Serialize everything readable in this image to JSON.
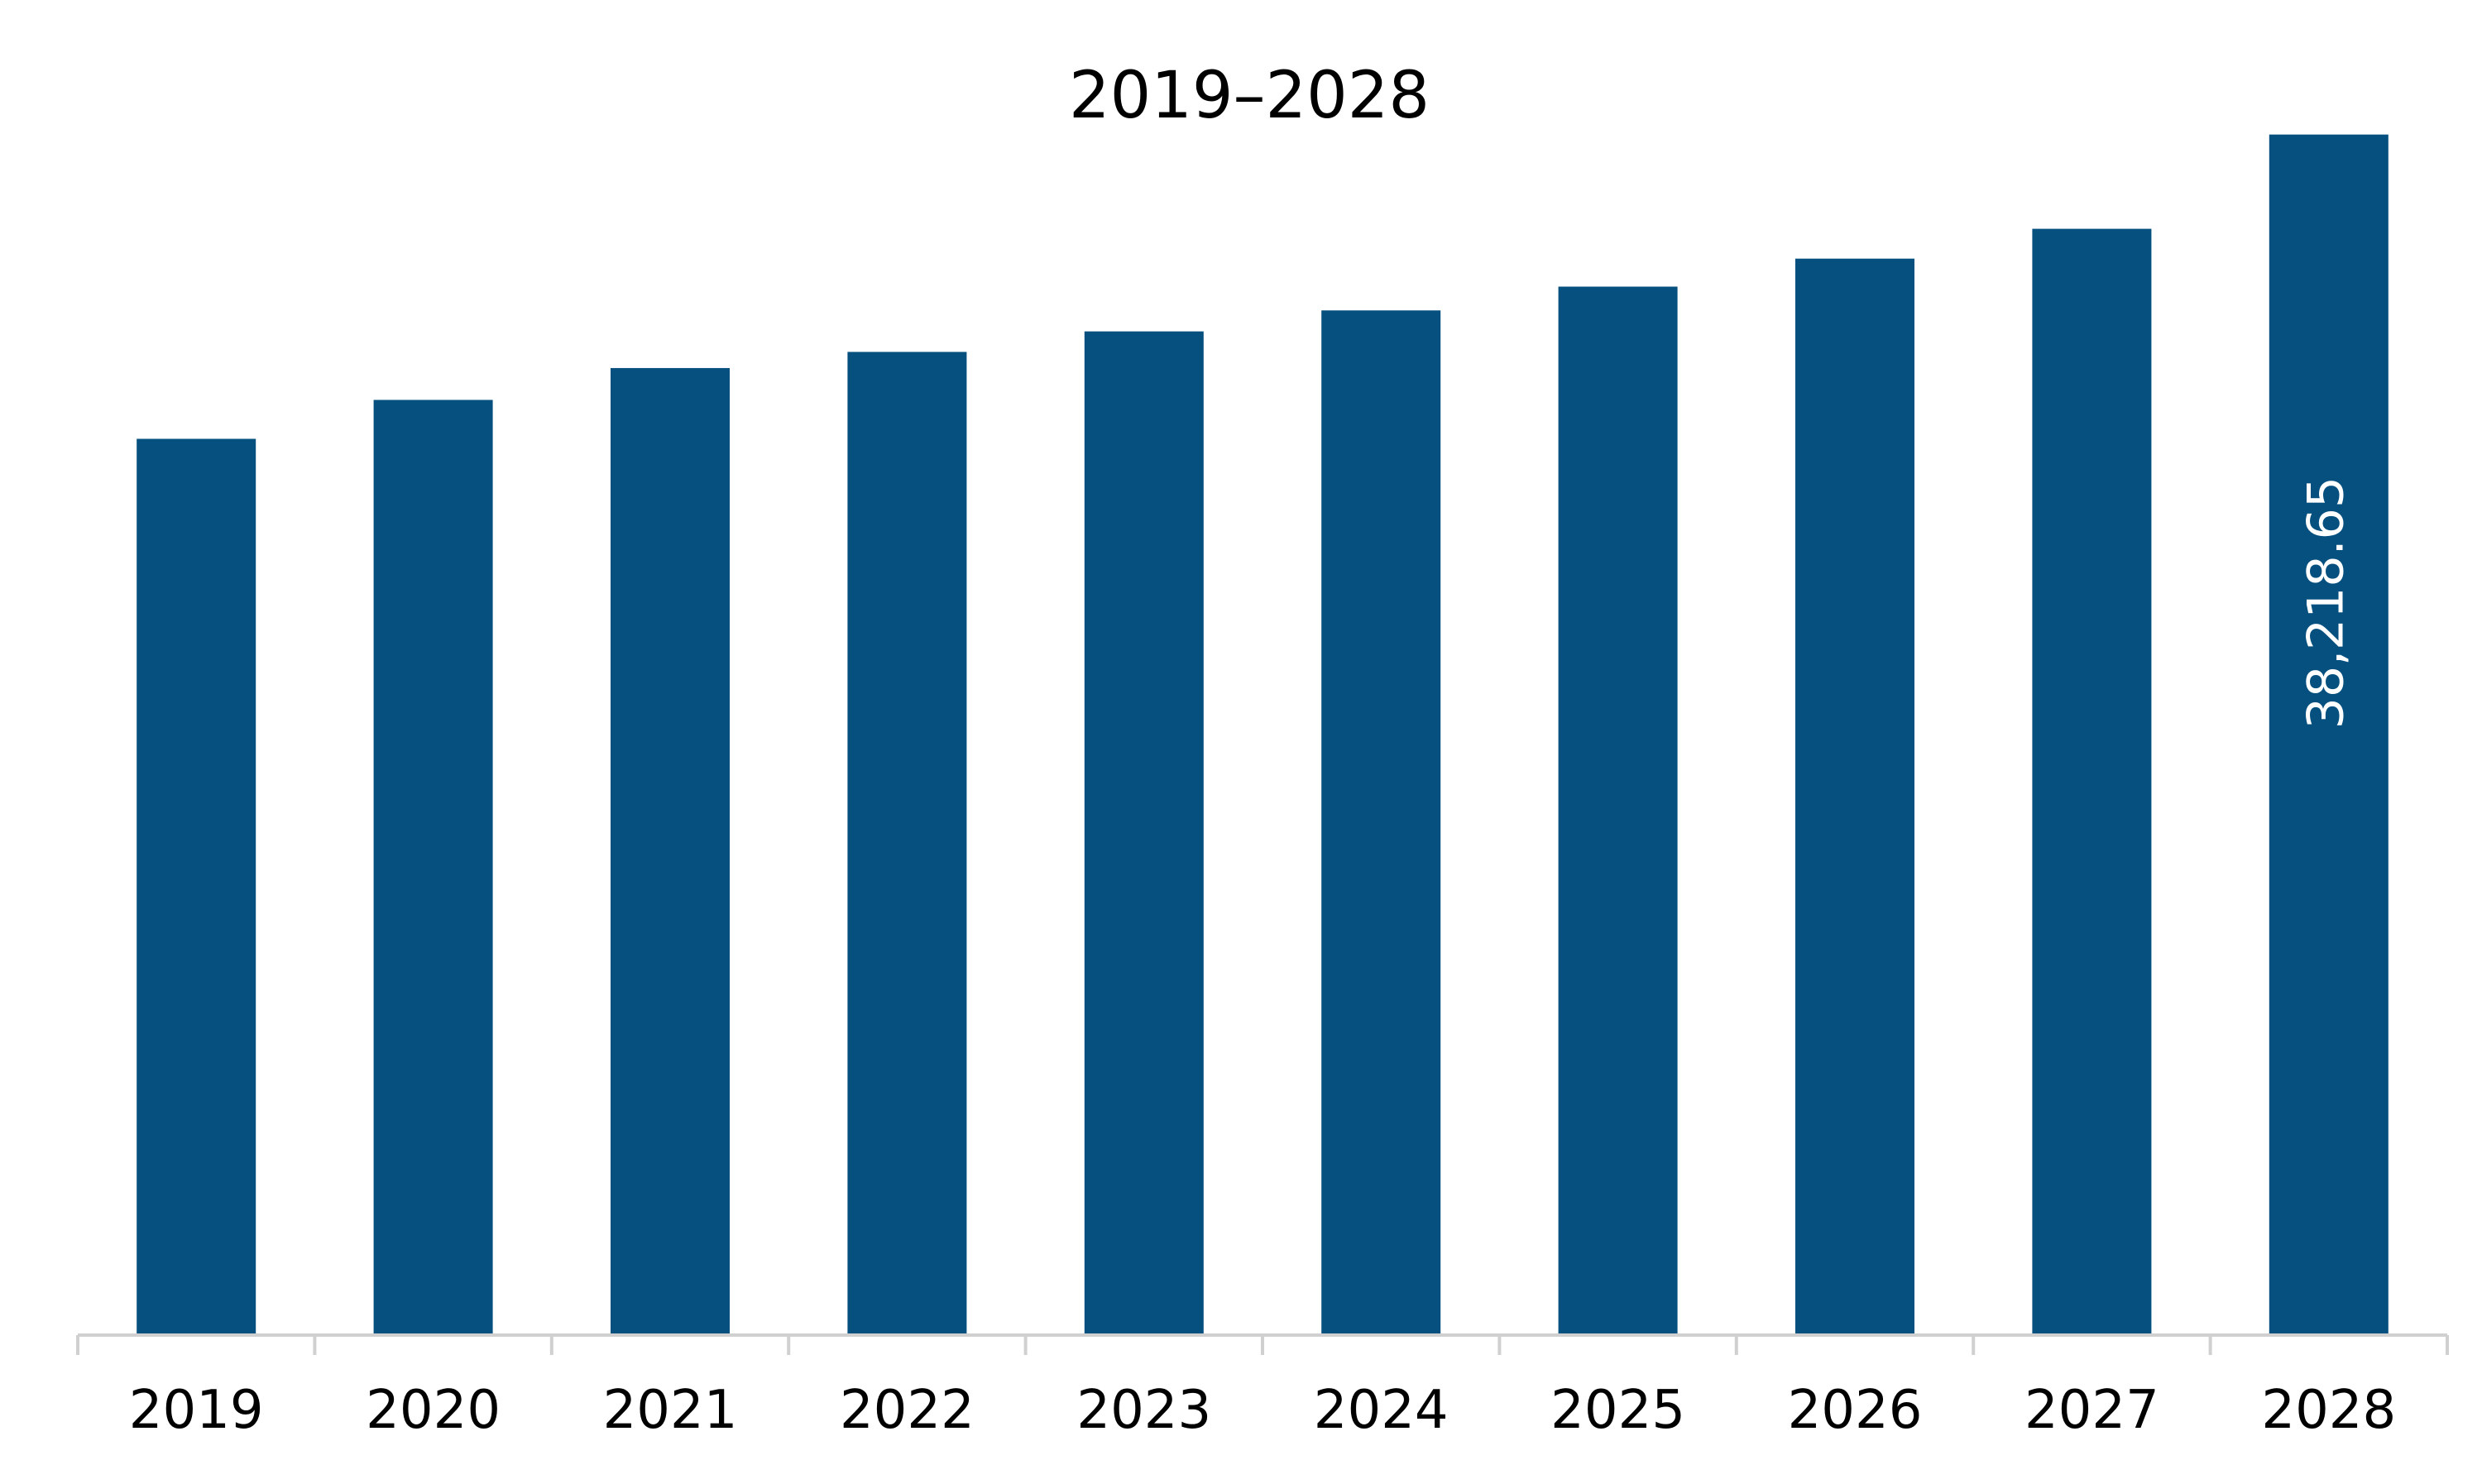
{
  "chart_data": {
    "type": "bar",
    "title": "2019–2028",
    "xlabel": "",
    "ylabel": "",
    "categories": [
      "2019",
      "2020",
      "2021",
      "2022",
      "2023",
      "2024",
      "2025",
      "2026",
      "2027",
      "2028"
    ],
    "series": [
      {
        "values": [
          28532,
          29771,
          30785,
          31299,
          31952,
          32620,
          33377,
          34268,
          35218,
          38218.65
        ],
        "color": "#06507f"
      }
    ],
    "data_labels": [
      {
        "category": "2028",
        "text": "38,218.65",
        "orientation": "vertical"
      }
    ],
    "ylim": [
      0,
      40000
    ],
    "grid": false,
    "legend": "none",
    "colors": {
      "bar": "#06507f",
      "axis": "#d0d0d0",
      "text": "#000000",
      "data_label": "#ffffff"
    }
  }
}
